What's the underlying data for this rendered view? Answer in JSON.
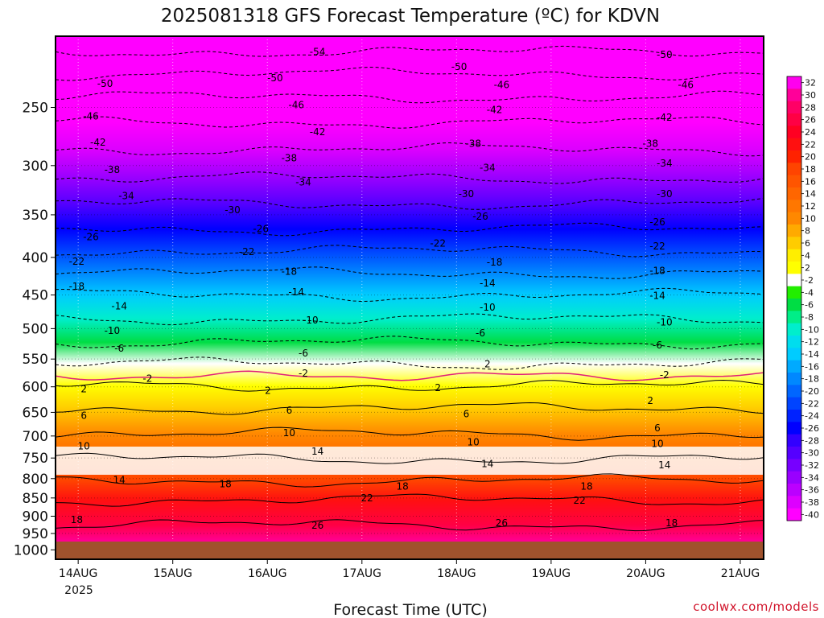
{
  "chart_data": {
    "type": "heatmap",
    "title": "2025081318 GFS Forecast Temperature (ºC) for KDVN",
    "xlabel": "Forecast Time (UTC)",
    "ylabel": "",
    "x_ticks": [
      "14AUG",
      "15AUG",
      "16AUG",
      "17AUG",
      "18AUG",
      "19AUG",
      "20AUG",
      "21AUG"
    ],
    "x_year_label": "2025",
    "y_ticks": [
      250,
      300,
      350,
      400,
      450,
      500,
      550,
      600,
      650,
      700,
      750,
      800,
      850,
      900,
      950,
      1000
    ],
    "y_axis": "pressure (hPa), log scale, decreasing upward",
    "ylim": [
      1000,
      200
    ],
    "grid": true,
    "colorbar": {
      "position": "right",
      "levels": [
        32,
        30,
        28,
        26,
        24,
        22,
        20,
        18,
        16,
        14,
        12,
        10,
        8,
        6,
        4,
        2,
        -2,
        -4,
        -6,
        -8,
        -10,
        -12,
        -14,
        -16,
        -18,
        -20,
        -22,
        -24,
        -26,
        -28,
        -30,
        -32,
        -34,
        -36,
        -38,
        -40
      ],
      "colors": [
        "#ff00ee",
        "#ff0099",
        "#ff0066",
        "#ff0044",
        "#ff0022",
        "#ff1010",
        "#ff2200",
        "#ff4400",
        "#ff5500",
        "#ff6600",
        "#ff7700",
        "#ff8800",
        "#ffaa00",
        "#ffcc00",
        "#ffee00",
        "#ffff00",
        "#ffffff",
        "#22ee00",
        "#00dd44",
        "#00ee88",
        "#00eecc",
        "#00ddee",
        "#00ccff",
        "#00aaff",
        "#0088ff",
        "#0066ff",
        "#0044ff",
        "#0022ff",
        "#0000ff",
        "#3300ff",
        "#5500ff",
        "#7700ff",
        "#9900ff",
        "#bb00ff",
        "#dd00ff",
        "#ff00ff"
      ]
    },
    "contours": [
      {
        "value": -54,
        "pressure": 210
      },
      {
        "value": -50,
        "pressure": 225
      },
      {
        "value": -46,
        "pressure": 242
      },
      {
        "value": -42,
        "pressure": 262
      },
      {
        "value": -38,
        "pressure": 285
      },
      {
        "value": -34,
        "pressure": 312
      },
      {
        "value": -30,
        "pressure": 338
      },
      {
        "value": -26,
        "pressure": 366
      },
      {
        "value": -22,
        "pressure": 392
      },
      {
        "value": -18,
        "pressure": 420
      },
      {
        "value": -14,
        "pressure": 450
      },
      {
        "value": -10,
        "pressure": 485
      },
      {
        "value": -6,
        "pressure": 522
      },
      {
        "value": -2,
        "pressure": 558
      },
      {
        "value": 2,
        "pressure": 598
      },
      {
        "value": 6,
        "pressure": 642
      },
      {
        "value": 10,
        "pressure": 695
      },
      {
        "value": 14,
        "pressure": 752
      },
      {
        "value": 18,
        "pressure": 805
      },
      {
        "value": 22,
        "pressure": 855
      },
      {
        "value": 26,
        "pressure": 925
      }
    ],
    "contour_labels": [
      {
        "text": "-54",
        "x": 0.37,
        "p": 210
      },
      {
        "text": "-50",
        "x": 0.57,
        "p": 220
      },
      {
        "text": "-50",
        "x": 0.86,
        "p": 212
      },
      {
        "text": "-50",
        "x": 0.07,
        "p": 232
      },
      {
        "text": "-50",
        "x": 0.31,
        "p": 228
      },
      {
        "text": "-46",
        "x": 0.63,
        "p": 233
      },
      {
        "text": "-46",
        "x": 0.89,
        "p": 233
      },
      {
        "text": "-46",
        "x": 0.05,
        "p": 257
      },
      {
        "text": "-46",
        "x": 0.34,
        "p": 248
      },
      {
        "text": "-42",
        "x": 0.62,
        "p": 252
      },
      {
        "text": "-42",
        "x": 0.86,
        "p": 258
      },
      {
        "text": "-42",
        "x": 0.06,
        "p": 279
      },
      {
        "text": "-42",
        "x": 0.37,
        "p": 270
      },
      {
        "text": "-38",
        "x": 0.59,
        "p": 280
      },
      {
        "text": "-38",
        "x": 0.84,
        "p": 280
      },
      {
        "text": "-38",
        "x": 0.08,
        "p": 304
      },
      {
        "text": "-38",
        "x": 0.33,
        "p": 293
      },
      {
        "text": "-34",
        "x": 0.61,
        "p": 302
      },
      {
        "text": "-34",
        "x": 0.86,
        "p": 298
      },
      {
        "text": "-34",
        "x": 0.1,
        "p": 330
      },
      {
        "text": "-34",
        "x": 0.35,
        "p": 316
      },
      {
        "text": "-30",
        "x": 0.58,
        "p": 328
      },
      {
        "text": "-30",
        "x": 0.86,
        "p": 328
      },
      {
        "text": "-30",
        "x": 0.25,
        "p": 345
      },
      {
        "text": "-26",
        "x": 0.6,
        "p": 352
      },
      {
        "text": "-26",
        "x": 0.85,
        "p": 358
      },
      {
        "text": "-26",
        "x": 0.05,
        "p": 375
      },
      {
        "text": "-26",
        "x": 0.29,
        "p": 366
      },
      {
        "text": "-22",
        "x": 0.54,
        "p": 383
      },
      {
        "text": "-22",
        "x": 0.85,
        "p": 386
      },
      {
        "text": "-22",
        "x": 0.03,
        "p": 405
      },
      {
        "text": "-22",
        "x": 0.27,
        "p": 393
      },
      {
        "text": "-18",
        "x": 0.62,
        "p": 406
      },
      {
        "text": "-18",
        "x": 0.85,
        "p": 417
      },
      {
        "text": "-18",
        "x": 0.03,
        "p": 438
      },
      {
        "text": "-18",
        "x": 0.33,
        "p": 418
      },
      {
        "text": "-14",
        "x": 0.61,
        "p": 434
      },
      {
        "text": "-14",
        "x": 0.85,
        "p": 451
      },
      {
        "text": "-14",
        "x": 0.09,
        "p": 466
      },
      {
        "text": "-14",
        "x": 0.34,
        "p": 446
      },
      {
        "text": "-10",
        "x": 0.61,
        "p": 468
      },
      {
        "text": "-10",
        "x": 0.86,
        "p": 490
      },
      {
        "text": "-10",
        "x": 0.08,
        "p": 503
      },
      {
        "text": "-10",
        "x": 0.36,
        "p": 487
      },
      {
        "text": "-6",
        "x": 0.6,
        "p": 507
      },
      {
        "text": "-6",
        "x": 0.85,
        "p": 527
      },
      {
        "text": "-6",
        "x": 0.09,
        "p": 532
      },
      {
        "text": "-6",
        "x": 0.35,
        "p": 540
      },
      {
        "text": "-2",
        "x": 0.13,
        "p": 585
      },
      {
        "text": "-2",
        "x": 0.35,
        "p": 575
      },
      {
        "text": "2",
        "x": 0.61,
        "p": 559
      },
      {
        "text": "-2",
        "x": 0.86,
        "p": 578
      },
      {
        "text": "2",
        "x": 0.04,
        "p": 604
      },
      {
        "text": "2",
        "x": 0.3,
        "p": 607
      },
      {
        "text": "2",
        "x": 0.54,
        "p": 602
      },
      {
        "text": "2",
        "x": 0.84,
        "p": 627
      },
      {
        "text": "6",
        "x": 0.04,
        "p": 657
      },
      {
        "text": "6",
        "x": 0.33,
        "p": 646
      },
      {
        "text": "6",
        "x": 0.58,
        "p": 653
      },
      {
        "text": "6",
        "x": 0.85,
        "p": 683
      },
      {
        "text": "10",
        "x": 0.04,
        "p": 723
      },
      {
        "text": "10",
        "x": 0.33,
        "p": 693
      },
      {
        "text": "10",
        "x": 0.59,
        "p": 714
      },
      {
        "text": "10",
        "x": 0.85,
        "p": 717
      },
      {
        "text": "14",
        "x": 0.09,
        "p": 803
      },
      {
        "text": "14",
        "x": 0.37,
        "p": 735
      },
      {
        "text": "14",
        "x": 0.61,
        "p": 764
      },
      {
        "text": "14",
        "x": 0.86,
        "p": 767
      },
      {
        "text": "18",
        "x": 0.24,
        "p": 814
      },
      {
        "text": "18",
        "x": 0.49,
        "p": 820
      },
      {
        "text": "18",
        "x": 0.75,
        "p": 820
      },
      {
        "text": "18",
        "x": 0.03,
        "p": 910
      },
      {
        "text": "18",
        "x": 0.87,
        "p": 919
      },
      {
        "text": "22",
        "x": 0.44,
        "p": 850
      },
      {
        "text": "22",
        "x": 0.74,
        "p": 857
      },
      {
        "text": "26",
        "x": 0.37,
        "p": 926
      },
      {
        "text": "26",
        "x": 0.63,
        "p": 919
      }
    ]
  },
  "credit": "coolwx.com/models"
}
